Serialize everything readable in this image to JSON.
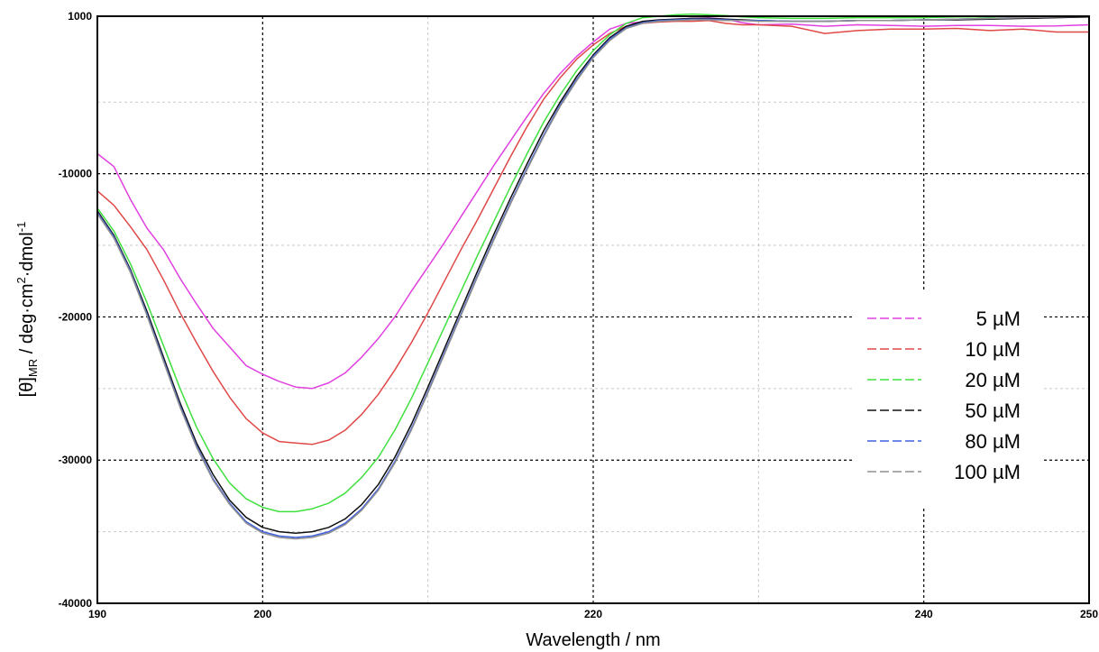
{
  "chart_data": {
    "type": "line",
    "title": "",
    "xlabel": "Wavelength / nm",
    "ylabel": {
      "main": "[θ]",
      "sub": "MR",
      "rest": " / deg·cm",
      "sup1": "2",
      "mid": "·dmol",
      "sup2": "-1"
    },
    "xlim": [
      190,
      250
    ],
    "ylim": [
      -40000,
      1000
    ],
    "x_ticks": [
      {
        "value": 190,
        "label": "190"
      },
      {
        "value": 200,
        "label": "200"
      },
      {
        "value": 220,
        "label": "220"
      },
      {
        "value": 240,
        "label": "240"
      },
      {
        "value": 250,
        "label": "250"
      }
    ],
    "y_ticks": [
      {
        "value": 1000,
        "label": "1000"
      },
      {
        "value": -10000,
        "label": "-10000"
      },
      {
        "value": -20000,
        "label": "-20000"
      },
      {
        "value": -30000,
        "label": "-30000"
      },
      {
        "value": -40000,
        "label": "-40000"
      }
    ],
    "grid": true,
    "legend_position": "right",
    "series": [
      {
        "name": "5 µM",
        "color": "#e040e0",
        "x": [
          190,
          191,
          192,
          193,
          194,
          195,
          196,
          197,
          198,
          199,
          200,
          201,
          202,
          203,
          204,
          205,
          206,
          207,
          208,
          209,
          210,
          211,
          212,
          213,
          214,
          215,
          216,
          217,
          218,
          219,
          220,
          221,
          222,
          223,
          224,
          225,
          226,
          227,
          228,
          229,
          230,
          232,
          234,
          236,
          238,
          240,
          242,
          244,
          246,
          248,
          250
        ],
        "y": [
          -8600,
          -9500,
          -11800,
          -13800,
          -15300,
          -17300,
          -19100,
          -20800,
          -22100,
          -23400,
          -24000,
          -24500,
          -24900,
          -25000,
          -24600,
          -23900,
          -22800,
          -21500,
          -20000,
          -18200,
          -16500,
          -14800,
          -13000,
          -11200,
          -9400,
          -7700,
          -6000,
          -4400,
          -3000,
          -1800,
          -800,
          100,
          500,
          600,
          700,
          800,
          850,
          880,
          800,
          550,
          400,
          450,
          300,
          400,
          350,
          300,
          350,
          350,
          300,
          320,
          400
        ]
      },
      {
        "name": "10 µM",
        "color": "#e04848",
        "x": [
          190,
          191,
          192,
          193,
          194,
          195,
          196,
          197,
          198,
          199,
          200,
          201,
          202,
          203,
          204,
          205,
          206,
          207,
          208,
          209,
          210,
          211,
          212,
          213,
          214,
          215,
          216,
          217,
          218,
          219,
          220,
          221,
          222,
          223,
          224,
          225,
          226,
          227,
          228,
          229,
          230,
          232,
          234,
          236,
          238,
          240,
          242,
          244,
          246,
          248,
          250
        ],
        "y": [
          -11200,
          -12200,
          -13700,
          -15300,
          -17400,
          -19700,
          -21800,
          -23800,
          -25600,
          -27100,
          -28100,
          -28700,
          -28800,
          -28900,
          -28600,
          -27900,
          -26800,
          -25400,
          -23700,
          -21800,
          -19700,
          -17500,
          -15300,
          -13200,
          -11000,
          -8800,
          -6700,
          -4800,
          -3300,
          -2000,
          -1000,
          -200,
          300,
          500,
          600,
          650,
          650,
          700,
          500,
          400,
          400,
          300,
          -200,
          0,
          100,
          100,
          150,
          0,
          100,
          -100,
          -100
        ]
      },
      {
        "name": "20 µM",
        "color": "#40e040",
        "x": [
          190,
          191,
          192,
          193,
          194,
          195,
          196,
          197,
          198,
          199,
          200,
          201,
          202,
          203,
          204,
          205,
          206,
          207,
          208,
          209,
          210,
          211,
          212,
          213,
          214,
          215,
          216,
          217,
          218,
          219,
          220,
          221,
          222,
          223,
          224,
          225,
          226,
          227,
          228,
          229,
          230,
          232,
          234,
          236,
          238,
          240,
          242,
          244,
          246,
          248,
          250
        ],
        "y": [
          -12400,
          -14000,
          -16300,
          -19000,
          -22000,
          -25000,
          -27700,
          -29900,
          -31600,
          -32700,
          -33300,
          -33600,
          -33600,
          -33400,
          -33000,
          -32300,
          -31200,
          -29800,
          -27900,
          -25700,
          -23200,
          -20700,
          -18200,
          -15700,
          -13300,
          -10900,
          -8600,
          -6400,
          -4500,
          -2800,
          -1400,
          -300,
          500,
          900,
          1000,
          1100,
          1150,
          1100,
          1050,
          950,
          900,
          850,
          850,
          900,
          900,
          900,
          950,
          950,
          1000,
          1000,
          1000
        ]
      },
      {
        "name": "50 µM",
        "color": "#101010",
        "x": [
          190,
          191,
          192,
          193,
          194,
          195,
          196,
          197,
          198,
          199,
          200,
          201,
          202,
          203,
          204,
          205,
          206,
          207,
          208,
          209,
          210,
          211,
          212,
          213,
          214,
          215,
          216,
          217,
          218,
          219,
          220,
          221,
          222,
          223,
          224,
          225,
          226,
          227,
          228,
          229,
          230,
          232,
          234,
          236,
          238,
          240,
          242,
          244,
          246,
          248,
          250
        ],
        "y": [
          -12600,
          -14300,
          -16700,
          -19600,
          -22800,
          -26000,
          -28800,
          -31000,
          -32800,
          -34000,
          -34700,
          -35000,
          -35100,
          -35000,
          -34700,
          -34100,
          -33100,
          -31700,
          -29800,
          -27500,
          -24900,
          -22200,
          -19500,
          -16800,
          -14200,
          -11700,
          -9300,
          -7000,
          -5000,
          -3200,
          -1700,
          -500,
          300,
          650,
          750,
          800,
          850,
          850,
          800,
          750,
          700,
          650,
          650,
          700,
          700,
          750,
          750,
          800,
          850,
          900,
          950
        ]
      },
      {
        "name": "80 µM",
        "color": "#4060e0",
        "x": [
          190,
          191,
          192,
          193,
          194,
          195,
          196,
          197,
          198,
          199,
          200,
          201,
          202,
          203,
          204,
          205,
          206,
          207,
          208,
          209,
          210,
          211,
          212,
          213,
          214,
          215,
          216,
          217,
          218,
          219,
          220,
          221,
          222,
          223,
          224,
          225,
          226,
          227,
          228,
          229,
          230,
          232,
          234,
          236,
          238,
          240,
          242,
          244,
          246,
          248,
          250
        ],
        "y": [
          -12700,
          -14400,
          -16800,
          -19800,
          -23000,
          -26200,
          -29000,
          -31300,
          -33000,
          -34300,
          -35000,
          -35300,
          -35400,
          -35300,
          -35000,
          -34400,
          -33400,
          -32000,
          -30100,
          -27800,
          -25200,
          -22500,
          -19800,
          -17100,
          -14500,
          -12000,
          -9600,
          -7300,
          -5200,
          -3400,
          -1800,
          -600,
          200,
          550,
          700,
          750,
          800,
          800,
          750,
          700,
          700,
          650,
          650,
          700,
          700,
          750,
          800,
          850,
          900,
          950,
          1000
        ]
      },
      {
        "name": "100 µM",
        "color": "#909090",
        "x": [
          190,
          191,
          192,
          193,
          194,
          195,
          196,
          197,
          198,
          199,
          200,
          201,
          202,
          203,
          204,
          205,
          206,
          207,
          208,
          209,
          210,
          211,
          212,
          213,
          214,
          215,
          216,
          217,
          218,
          219,
          220,
          221,
          222,
          223,
          224,
          225,
          226,
          227,
          228,
          229,
          230,
          232,
          234,
          236,
          238,
          240,
          242,
          244,
          246,
          248,
          250
        ],
        "y": [
          -12800,
          -14500,
          -16900,
          -19900,
          -23100,
          -26300,
          -29100,
          -31400,
          -33100,
          -34400,
          -35100,
          -35400,
          -35500,
          -35400,
          -35100,
          -34500,
          -33500,
          -32100,
          -30200,
          -27900,
          -25300,
          -22600,
          -19900,
          -17200,
          -14600,
          -12100,
          -9700,
          -7400,
          -5300,
          -3500,
          -1900,
          -700,
          150,
          500,
          650,
          700,
          750,
          750,
          700,
          700,
          650,
          650,
          650,
          700,
          700,
          750,
          800,
          850,
          900,
          950,
          1000
        ]
      }
    ]
  }
}
